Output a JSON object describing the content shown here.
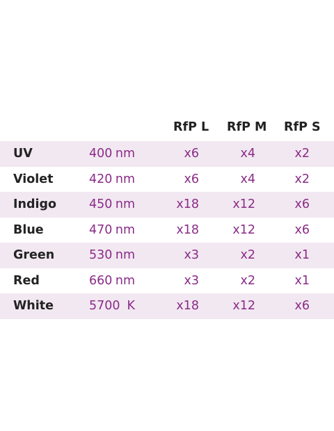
{
  "table": {
    "headers": [
      "RfP L",
      "RfP M",
      "RfP S"
    ],
    "rows": [
      {
        "name": "UV",
        "value": "400",
        "unit": "nm",
        "rfp_l": "x6",
        "rfp_m": "x4",
        "rfp_s": "x2"
      },
      {
        "name": "Violet",
        "value": "420",
        "unit": "nm",
        "rfp_l": "x6",
        "rfp_m": "x4",
        "rfp_s": "x2"
      },
      {
        "name": "Indigo",
        "value": "450",
        "unit": "nm",
        "rfp_l": "x18",
        "rfp_m": "x12",
        "rfp_s": "x6"
      },
      {
        "name": "Blue",
        "value": "470",
        "unit": "nm",
        "rfp_l": "x18",
        "rfp_m": "x12",
        "rfp_s": "x6"
      },
      {
        "name": "Green",
        "value": "530",
        "unit": "nm",
        "rfp_l": "x3",
        "rfp_m": "x2",
        "rfp_s": "x1"
      },
      {
        "name": "Red",
        "value": "660",
        "unit": "nm",
        "rfp_l": "x3",
        "rfp_m": "x2",
        "rfp_s": "x1"
      },
      {
        "name": "White",
        "value": "5700",
        "unit": "K",
        "rfp_l": "x18",
        "rfp_m": "x12",
        "rfp_s": "x6"
      }
    ]
  },
  "colors": {
    "accent": "#8a2b88",
    "row_shade": "#f2e8f1",
    "label_text": "#232323"
  }
}
